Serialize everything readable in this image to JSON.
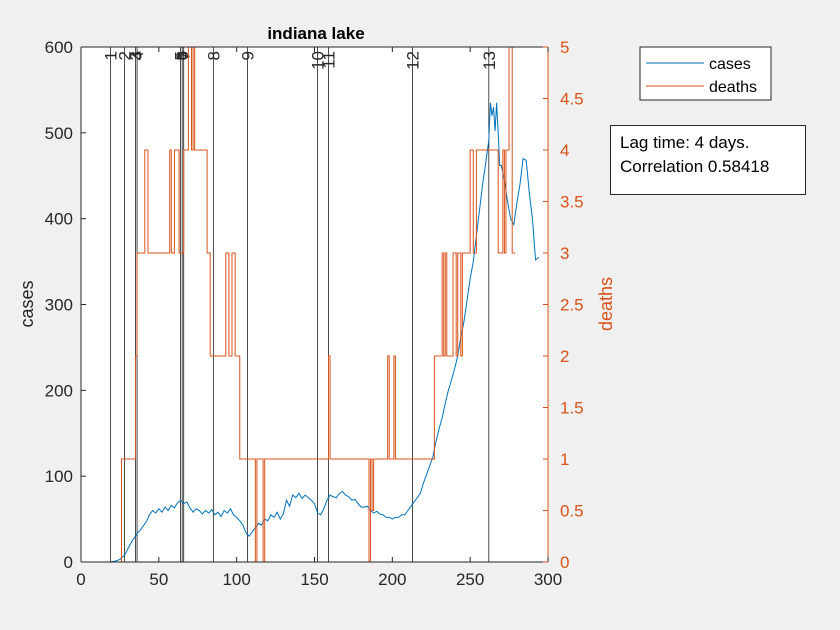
{
  "chart_data": {
    "type": "line",
    "title": "indiana lake",
    "xlabel": "",
    "ylabel_left": "cases",
    "ylabel_right": "deaths",
    "xlim": [
      0,
      300
    ],
    "ylim_left": [
      0,
      600
    ],
    "ylim_right": [
      0,
      5
    ],
    "x_ticks": [
      "0",
      "50",
      "100",
      "150",
      "200",
      "250",
      "300"
    ],
    "y_left_ticks": [
      "0",
      "100",
      "200",
      "300",
      "400",
      "500",
      "600"
    ],
    "y_right_ticks": [
      "0",
      "0.5",
      "1",
      "1.5",
      "2",
      "2.5",
      "3",
      "3.5",
      "4",
      "4.5",
      "5"
    ],
    "grid": false,
    "legend_position": "outside-top-right",
    "colors": {
      "cases": "#0072bd",
      "deaths": "#d95319",
      "axis": "#262626",
      "event_line": "#000000"
    },
    "event_lines": [
      {
        "label": "1",
        "x": 19
      },
      {
        "label": "2",
        "x": 28
      },
      {
        "label": "3",
        "x": 35
      },
      {
        "label": "4",
        "x": 36
      },
      {
        "label": "5",
        "x": 64
      },
      {
        "label": "6",
        "x": 65
      },
      {
        "label": "7",
        "x": 66
      },
      {
        "label": "8",
        "x": 85
      },
      {
        "label": "9",
        "x": 107
      },
      {
        "label": "10",
        "x": 152
      },
      {
        "label": "11",
        "x": 159
      },
      {
        "label": "12",
        "x": 213
      },
      {
        "label": "13",
        "x": 262
      }
    ],
    "series": [
      {
        "name": "cases",
        "axis": "left",
        "points": [
          [
            0,
            0
          ],
          [
            18,
            0
          ],
          [
            22,
            1
          ],
          [
            25,
            3
          ],
          [
            28,
            8
          ],
          [
            30,
            15
          ],
          [
            33,
            25
          ],
          [
            36,
            33
          ],
          [
            38,
            37
          ],
          [
            40,
            42
          ],
          [
            42,
            47
          ],
          [
            44,
            55
          ],
          [
            46,
            60
          ],
          [
            48,
            57
          ],
          [
            50,
            62
          ],
          [
            52,
            58
          ],
          [
            54,
            64
          ],
          [
            56,
            60
          ],
          [
            58,
            66
          ],
          [
            60,
            63
          ],
          [
            62,
            69
          ],
          [
            64,
            72
          ],
          [
            66,
            68
          ],
          [
            68,
            70
          ],
          [
            70,
            63
          ],
          [
            72,
            58
          ],
          [
            74,
            62
          ],
          [
            76,
            60
          ],
          [
            78,
            56
          ],
          [
            80,
            60
          ],
          [
            82,
            57
          ],
          [
            84,
            61
          ],
          [
            86,
            55
          ],
          [
            88,
            58
          ],
          [
            90,
            53
          ],
          [
            92,
            60
          ],
          [
            94,
            57
          ],
          [
            96,
            62
          ],
          [
            98,
            55
          ],
          [
            100,
            52
          ],
          [
            102,
            48
          ],
          [
            104,
            43
          ],
          [
            106,
            34
          ],
          [
            108,
            30
          ],
          [
            110,
            35
          ],
          [
            112,
            40
          ],
          [
            114,
            45
          ],
          [
            116,
            43
          ],
          [
            118,
            50
          ],
          [
            120,
            48
          ],
          [
            122,
            55
          ],
          [
            124,
            52
          ],
          [
            126,
            58
          ],
          [
            128,
            50
          ],
          [
            130,
            56
          ],
          [
            132,
            72
          ],
          [
            134,
            65
          ],
          [
            136,
            78
          ],
          [
            138,
            75
          ],
          [
            140,
            80
          ],
          [
            142,
            74
          ],
          [
            144,
            78
          ],
          [
            146,
            75
          ],
          [
            148,
            72
          ],
          [
            150,
            68
          ],
          [
            152,
            57
          ],
          [
            154,
            55
          ],
          [
            156,
            62
          ],
          [
            158,
            72
          ],
          [
            160,
            78
          ],
          [
            162,
            76
          ],
          [
            164,
            75
          ],
          [
            166,
            80
          ],
          [
            168,
            82
          ],
          [
            170,
            78
          ],
          [
            172,
            76
          ],
          [
            174,
            72
          ],
          [
            176,
            73
          ],
          [
            178,
            68
          ],
          [
            180,
            64
          ],
          [
            182,
            64
          ],
          [
            184,
            65
          ],
          [
            186,
            60
          ],
          [
            188,
            57
          ],
          [
            190,
            59
          ],
          [
            192,
            56
          ],
          [
            194,
            55
          ],
          [
            196,
            52
          ],
          [
            198,
            52
          ],
          [
            200,
            50
          ],
          [
            202,
            52
          ],
          [
            204,
            52
          ],
          [
            206,
            55
          ],
          [
            208,
            55
          ],
          [
            210,
            60
          ],
          [
            212,
            65
          ],
          [
            214,
            70
          ],
          [
            216,
            75
          ],
          [
            218,
            80
          ],
          [
            220,
            92
          ],
          [
            222,
            102
          ],
          [
            224,
            112
          ],
          [
            226,
            122
          ],
          [
            228,
            140
          ],
          [
            230,
            155
          ],
          [
            232,
            168
          ],
          [
            234,
            185
          ],
          [
            236,
            200
          ],
          [
            238,
            212
          ],
          [
            240,
            225
          ],
          [
            242,
            240
          ],
          [
            244,
            262
          ],
          [
            246,
            280
          ],
          [
            248,
            305
          ],
          [
            250,
            330
          ],
          [
            252,
            350
          ],
          [
            254,
            380
          ],
          [
            256,
            410
          ],
          [
            258,
            440
          ],
          [
            260,
            465
          ],
          [
            262,
            492
          ],
          [
            263,
            535
          ],
          [
            264,
            520
          ],
          [
            265,
            530
          ],
          [
            266,
            502
          ],
          [
            267,
            535
          ],
          [
            268,
            500
          ],
          [
            269,
            462
          ],
          [
            270,
            462
          ],
          [
            272,
            445
          ],
          [
            274,
            420
          ],
          [
            276,
            400
          ],
          [
            278,
            393
          ],
          [
            280,
            418
          ],
          [
            282,
            440
          ],
          [
            284,
            470
          ],
          [
            286,
            468
          ],
          [
            288,
            430
          ],
          [
            290,
            400
          ],
          [
            292,
            352
          ],
          [
            294,
            355
          ]
        ]
      },
      {
        "name": "deaths",
        "axis": "right",
        "points": [
          [
            0,
            0
          ],
          [
            26,
            0
          ],
          [
            26,
            1
          ],
          [
            35,
            1
          ],
          [
            35,
            2
          ],
          [
            36,
            2
          ],
          [
            36,
            3
          ],
          [
            41,
            3
          ],
          [
            41,
            4
          ],
          [
            43,
            4
          ],
          [
            43,
            3
          ],
          [
            57,
            3
          ],
          [
            57,
            4
          ],
          [
            58,
            4
          ],
          [
            58,
            3
          ],
          [
            60,
            3
          ],
          [
            60,
            4
          ],
          [
            63,
            4
          ],
          [
            63,
            3
          ],
          [
            66,
            3
          ],
          [
            66,
            4
          ],
          [
            69,
            4
          ],
          [
            69,
            5
          ],
          [
            71,
            5
          ],
          [
            71,
            4
          ],
          [
            72,
            4
          ],
          [
            72,
            5
          ],
          [
            73,
            5
          ],
          [
            73,
            4
          ],
          [
            81,
            4
          ],
          [
            81,
            3
          ],
          [
            83,
            3
          ],
          [
            83,
            2
          ],
          [
            93,
            2
          ],
          [
            93,
            3
          ],
          [
            95,
            3
          ],
          [
            95,
            2
          ],
          [
            97,
            2
          ],
          [
            97,
            3
          ],
          [
            99,
            3
          ],
          [
            99,
            2
          ],
          [
            102,
            2
          ],
          [
            102,
            1
          ],
          [
            112,
            1
          ],
          [
            112,
            0
          ],
          [
            113,
            0
          ],
          [
            113,
            1
          ],
          [
            117,
            1
          ],
          [
            117,
            0
          ],
          [
            118,
            0
          ],
          [
            118,
            1
          ],
          [
            159,
            1
          ],
          [
            159,
            2
          ],
          [
            160,
            2
          ],
          [
            160,
            1
          ],
          [
            185,
            1
          ],
          [
            185,
            0
          ],
          [
            186,
            0
          ],
          [
            186,
            1
          ],
          [
            187,
            1
          ],
          [
            187,
            0.5
          ],
          [
            188,
            0.5
          ],
          [
            188,
            1
          ],
          [
            197,
            1
          ],
          [
            197,
            2
          ],
          [
            198,
            2
          ],
          [
            198,
            1
          ],
          [
            201,
            1
          ],
          [
            201,
            2
          ],
          [
            202,
            2
          ],
          [
            202,
            1
          ],
          [
            227,
            1
          ],
          [
            227,
            2
          ],
          [
            232,
            2
          ],
          [
            232,
            3
          ],
          [
            233,
            3
          ],
          [
            233,
            2
          ],
          [
            234,
            2
          ],
          [
            234,
            3
          ],
          [
            235,
            3
          ],
          [
            235,
            2
          ],
          [
            239,
            2
          ],
          [
            239,
            3
          ],
          [
            241,
            3
          ],
          [
            241,
            2
          ],
          [
            242,
            2
          ],
          [
            242,
            3
          ],
          [
            244,
            3
          ],
          [
            244,
            2
          ],
          [
            245,
            2
          ],
          [
            245,
            3
          ],
          [
            250,
            3
          ],
          [
            250,
            4
          ],
          [
            252,
            4
          ],
          [
            252,
            3
          ],
          [
            254,
            3
          ],
          [
            254,
            4
          ],
          [
            268,
            4
          ],
          [
            268,
            3
          ],
          [
            271,
            3
          ],
          [
            271,
            4
          ],
          [
            272,
            4
          ],
          [
            272,
            3
          ],
          [
            273,
            3
          ],
          [
            273,
            4
          ],
          [
            275,
            4
          ],
          [
            275,
            5
          ],
          [
            277,
            5
          ],
          [
            277,
            3
          ],
          [
            279,
            3
          ]
        ]
      }
    ],
    "annotation_lines": [
      "Lag time: 4 days.",
      "Correlation 0.58418"
    ]
  }
}
